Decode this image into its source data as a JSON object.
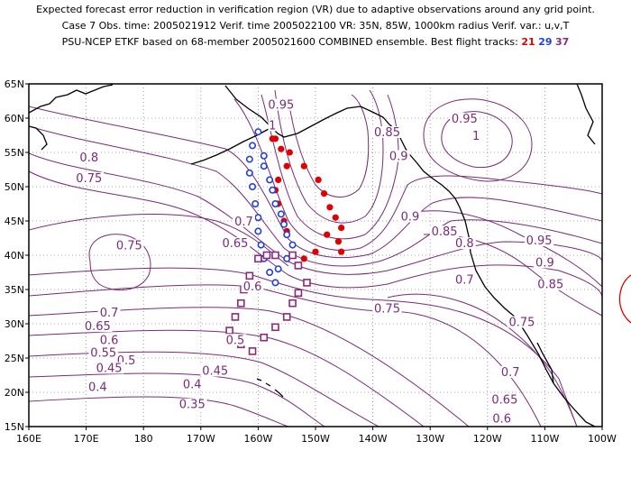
{
  "header": {
    "line1": "Expected forecast error reduction in verification region (VR) due to adaptive observations around any grid point.",
    "line2": "Case 7   Obs. time: 2005021912   Verif. time 2005022100   VR: 35N, 85W, 1000km radius   Verif. var.: u,v,T",
    "line3_prefix": "PSU-NCEP ETKF based on 68-member 2005021600 COMBINED ensemble.   Best flight tracks:",
    "track_a": "21",
    "track_b": "29",
    "track_c": "37"
  },
  "colors": {
    "contour": "#7a2a7a",
    "track_21": "#e00000",
    "track_29": "#2040e0",
    "track_37": "#8a2a7a",
    "coast": "#000000",
    "grid": "#888888",
    "vr_circle": "#e00000"
  },
  "map": {
    "lon_min": 160,
    "lon_max": 260,
    "lat_min": 15,
    "lat_max": 65,
    "x_ticks": [
      "160E",
      "170E",
      "180",
      "170W",
      "160W",
      "150W",
      "140W",
      "130W",
      "120W",
      "110W",
      "100W"
    ],
    "y_ticks": [
      "15N",
      "20N",
      "25N",
      "30N",
      "35N",
      "40N",
      "45N",
      "50N",
      "55N",
      "60N",
      "65N"
    ]
  },
  "contour_labels": [
    {
      "text": "0.95",
      "lon": 204,
      "lat": 61.5
    },
    {
      "text": "1",
      "lon": 202.5,
      "lat": 58.5
    },
    {
      "text": "0.85",
      "lon": 222.5,
      "lat": 57.5
    },
    {
      "text": "0.95",
      "lon": 236,
      "lat": 59.5
    },
    {
      "text": "1",
      "lon": 238,
      "lat": 57
    },
    {
      "text": "0.9",
      "lon": 224.5,
      "lat": 54
    },
    {
      "text": "0.8",
      "lon": 170.5,
      "lat": 53.8
    },
    {
      "text": "0.75",
      "lon": 170.5,
      "lat": 50.8
    },
    {
      "text": "0.7",
      "lon": 197.5,
      "lat": 44.5
    },
    {
      "text": "0.75",
      "lon": 177.5,
      "lat": 41
    },
    {
      "text": "0.65",
      "lon": 196,
      "lat": 41.3
    },
    {
      "text": "0.9",
      "lon": 226.5,
      "lat": 45.2
    },
    {
      "text": "0.85",
      "lon": 232.5,
      "lat": 43
    },
    {
      "text": "0.8",
      "lon": 236,
      "lat": 41.3
    },
    {
      "text": "0.95",
      "lon": 249,
      "lat": 41.7
    },
    {
      "text": "0.9",
      "lon": 250,
      "lat": 38.5
    },
    {
      "text": "0.85",
      "lon": 251,
      "lat": 35.3
    },
    {
      "text": "0.7",
      "lon": 236,
      "lat": 36
    },
    {
      "text": "0.6",
      "lon": 199,
      "lat": 35
    },
    {
      "text": "0.75",
      "lon": 222.5,
      "lat": 31.8
    },
    {
      "text": "0.7",
      "lon": 174,
      "lat": 31.2
    },
    {
      "text": "0.65",
      "lon": 172,
      "lat": 29.2
    },
    {
      "text": "0.6",
      "lon": 174,
      "lat": 27.2
    },
    {
      "text": "0.55",
      "lon": 173,
      "lat": 25.3
    },
    {
      "text": "0.5",
      "lon": 177,
      "lat": 24.2
    },
    {
      "text": "0.5",
      "lon": 196,
      "lat": 27.2
    },
    {
      "text": "0.75",
      "lon": 246,
      "lat": 29.8
    },
    {
      "text": "0.45",
      "lon": 174,
      "lat": 23.1
    },
    {
      "text": "0.45",
      "lon": 192.5,
      "lat": 22.7
    },
    {
      "text": "0.7",
      "lon": 244,
      "lat": 22.5
    },
    {
      "text": "0.4",
      "lon": 172,
      "lat": 20.3
    },
    {
      "text": "0.4",
      "lon": 188.5,
      "lat": 20.7
    },
    {
      "text": "0.65",
      "lon": 243,
      "lat": 18.5
    },
    {
      "text": "0.35",
      "lon": 188.5,
      "lat": 17.8
    },
    {
      "text": "0.6",
      "lon": 242.5,
      "lat": 15.7
    }
  ],
  "tracks": {
    "track_21": [
      [
        203,
        57
      ],
      [
        205.5,
        55
      ],
      [
        208,
        53
      ],
      [
        210.5,
        51
      ],
      [
        211.5,
        49
      ],
      [
        212.5,
        47
      ],
      [
        213.5,
        45.5
      ],
      [
        214.5,
        44
      ],
      [
        212,
        43
      ],
      [
        214,
        42
      ],
      [
        214.5,
        40.5
      ],
      [
        210,
        40.5
      ],
      [
        208,
        39.5
      ],
      [
        206,
        41.5
      ],
      [
        205,
        43.5
      ],
      [
        204.5,
        45
      ],
      [
        204,
        46
      ],
      [
        203.5,
        47.5
      ],
      [
        203,
        49.5
      ],
      [
        203.5,
        51
      ],
      [
        205,
        53
      ],
      [
        204,
        55.5
      ],
      [
        202.5,
        57
      ]
    ],
    "track_29": [
      [
        200,
        58
      ],
      [
        199,
        56
      ],
      [
        198.5,
        54
      ],
      [
        198.5,
        52
      ],
      [
        199,
        50
      ],
      [
        199.5,
        47.5
      ],
      [
        200,
        45.5
      ],
      [
        200,
        43.5
      ],
      [
        200.5,
        41.5
      ],
      [
        201,
        39.5
      ],
      [
        202,
        37.5
      ],
      [
        203,
        36
      ],
      [
        203.5,
        38
      ],
      [
        205,
        39.5
      ],
      [
        206,
        41.5
      ],
      [
        205,
        43
      ],
      [
        204.5,
        44.5
      ],
      [
        204,
        46
      ],
      [
        203,
        47.5
      ],
      [
        202.5,
        49.5
      ],
      [
        202,
        51
      ],
      [
        201,
        53
      ],
      [
        201,
        54.5
      ]
    ],
    "track_37": [
      [
        197,
        33
      ],
      [
        196,
        31
      ],
      [
        195,
        29
      ],
      [
        197,
        27
      ],
      [
        199,
        26
      ],
      [
        201,
        28
      ],
      [
        203,
        29.5
      ],
      [
        205,
        31
      ],
      [
        206,
        33
      ],
      [
        207,
        34.5
      ],
      [
        208.5,
        36
      ],
      [
        207,
        38.5
      ],
      [
        206,
        40
      ],
      [
        203,
        40
      ],
      [
        201.5,
        40
      ],
      [
        200,
        39.5
      ],
      [
        198.5,
        37
      ],
      [
        197.5,
        35
      ]
    ]
  }
}
